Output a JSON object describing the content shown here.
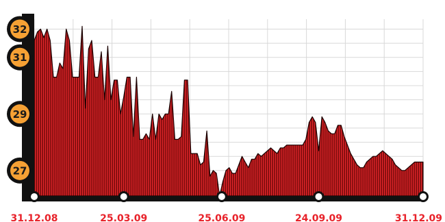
{
  "colors": {
    "fill": "#7a0c0c",
    "stripe": "#e3262b",
    "edge": "#1a0202",
    "badge": "#f6a134",
    "badge_ring": "#111111",
    "axis": "#111111",
    "grid": "#d8d8d8",
    "x_label": "#e8222a"
  },
  "chart_data": {
    "type": "area",
    "title": "",
    "xlabel": "",
    "ylabel": "",
    "ylim": [
      26.1,
      32.35
    ],
    "grid": true,
    "x_range": [
      "2008-12-31",
      "2009-12-31"
    ],
    "y_ticks": [
      {
        "value": 32,
        "label": "32"
      },
      {
        "value": 31,
        "label": "31"
      },
      {
        "value": 29,
        "label": "29"
      },
      {
        "value": 27,
        "label": "27"
      }
    ],
    "x_ticks": [
      {
        "date": "2008-12-31",
        "label": "31.12.08"
      },
      {
        "date": "2009-03-25",
        "label": "25.03.09"
      },
      {
        "date": "2009-06-25",
        "label": "25.06.09"
      },
      {
        "date": "2009-09-24",
        "label": "24.09.09"
      },
      {
        "date": "2009-12-31",
        "label": "31.12.09"
      }
    ],
    "x": [
      "2008-12-31",
      "2009-01-03",
      "2009-01-06",
      "2009-01-09",
      "2009-01-12",
      "2009-01-15",
      "2009-01-18",
      "2009-01-21",
      "2009-01-24",
      "2009-01-27",
      "2009-01-30",
      "2009-02-02",
      "2009-02-05",
      "2009-02-08",
      "2009-02-11",
      "2009-02-14",
      "2009-02-17",
      "2009-02-20",
      "2009-02-23",
      "2009-02-26",
      "2009-03-01",
      "2009-03-04",
      "2009-03-07",
      "2009-03-10",
      "2009-03-13",
      "2009-03-16",
      "2009-03-19",
      "2009-03-22",
      "2009-03-25",
      "2009-03-28",
      "2009-03-31",
      "2009-04-03",
      "2009-04-06",
      "2009-04-09",
      "2009-04-12",
      "2009-04-15",
      "2009-04-18",
      "2009-04-21",
      "2009-04-24",
      "2009-04-27",
      "2009-04-30",
      "2009-05-03",
      "2009-05-06",
      "2009-05-09",
      "2009-05-12",
      "2009-05-15",
      "2009-05-18",
      "2009-05-21",
      "2009-05-24",
      "2009-05-27",
      "2009-05-30",
      "2009-06-02",
      "2009-06-05",
      "2009-06-08",
      "2009-06-11",
      "2009-06-14",
      "2009-06-17",
      "2009-06-20",
      "2009-06-23",
      "2009-06-26",
      "2009-06-29",
      "2009-07-02",
      "2009-07-05",
      "2009-07-08",
      "2009-07-11",
      "2009-07-14",
      "2009-07-17",
      "2009-07-20",
      "2009-07-23",
      "2009-07-26",
      "2009-07-29",
      "2009-08-01",
      "2009-08-04",
      "2009-08-07",
      "2009-08-10",
      "2009-08-13",
      "2009-08-16",
      "2009-08-19",
      "2009-08-22",
      "2009-08-25",
      "2009-08-28",
      "2009-08-31",
      "2009-09-03",
      "2009-09-06",
      "2009-09-09",
      "2009-09-12",
      "2009-09-15",
      "2009-09-18",
      "2009-09-21",
      "2009-09-24",
      "2009-09-27",
      "2009-09-30",
      "2009-10-03",
      "2009-10-06",
      "2009-10-09",
      "2009-10-12",
      "2009-10-15",
      "2009-10-18",
      "2009-10-21",
      "2009-10-24",
      "2009-10-27",
      "2009-10-30",
      "2009-11-02",
      "2009-11-05",
      "2009-11-08",
      "2009-11-11",
      "2009-11-14",
      "2009-11-17",
      "2009-11-20",
      "2009-11-23",
      "2009-11-26",
      "2009-11-29",
      "2009-12-02",
      "2009-12-05",
      "2009-12-08",
      "2009-12-11",
      "2009-12-14",
      "2009-12-17",
      "2009-12-20",
      "2009-12-23",
      "2009-12-26",
      "2009-12-31"
    ],
    "series": [
      {
        "values": [
          31.6,
          31.9,
          32.0,
          31.7,
          32.0,
          31.6,
          30.3,
          30.3,
          30.8,
          30.6,
          32.0,
          31.6,
          30.3,
          30.3,
          30.3,
          32.1,
          29.2,
          31.3,
          31.6,
          30.3,
          30.3,
          31.2,
          29.5,
          31.4,
          29.5,
          30.2,
          30.2,
          29.0,
          29.6,
          30.3,
          30.3,
          28.2,
          30.3,
          28.1,
          28.1,
          28.3,
          28.1,
          29.0,
          28.1,
          29.0,
          28.8,
          29.0,
          29.0,
          29.8,
          28.1,
          28.1,
          28.2,
          30.2,
          30.2,
          27.6,
          27.6,
          27.6,
          27.2,
          27.3,
          28.4,
          26.8,
          27.0,
          26.9,
          26.1,
          26.6,
          27.0,
          27.1,
          26.9,
          26.9,
          27.2,
          27.5,
          27.3,
          27.1,
          27.4,
          27.4,
          27.6,
          27.5,
          27.6,
          27.7,
          27.8,
          27.7,
          27.6,
          27.8,
          27.8,
          27.9,
          27.9,
          27.9,
          27.9,
          27.9,
          27.9,
          28.1,
          28.7,
          28.9,
          28.7,
          27.7,
          28.9,
          28.7,
          28.4,
          28.3,
          28.3,
          28.6,
          28.6,
          28.2,
          27.9,
          27.6,
          27.4,
          27.2,
          27.1,
          27.1,
          27.3,
          27.4,
          27.5,
          27.5,
          27.6,
          27.7,
          27.6,
          27.5,
          27.4,
          27.2,
          27.1,
          27.0,
          27.0,
          27.1,
          27.2,
          27.3,
          27.3,
          27.3
        ]
      }
    ]
  }
}
